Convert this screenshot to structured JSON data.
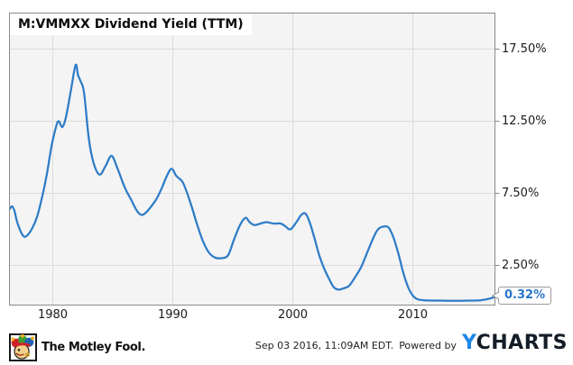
{
  "chart_data": {
    "type": "line",
    "title": "M:VMMXX Dividend Yield (TTM)",
    "series_name": "Dividend Yield (TTM)",
    "ticker": "M:VMMXX",
    "x": [
      1976.4,
      1976.6,
      1976.8,
      1977.0,
      1977.3,
      1977.6,
      1977.9,
      1978.3,
      1978.7,
      1979.1,
      1979.5,
      1979.9,
      1980.3,
      1980.5,
      1980.8,
      1981.1,
      1981.5,
      1981.9,
      1982.1,
      1982.3,
      1982.6,
      1983.0,
      1983.4,
      1983.9,
      1984.4,
      1984.9,
      1985.4,
      1986.0,
      1986.5,
      1987.0,
      1987.4,
      1987.8,
      1988.3,
      1988.7,
      1989.1,
      1989.5,
      1989.9,
      1990.3,
      1990.8,
      1991.2,
      1991.6,
      1992.0,
      1992.5,
      1993.0,
      1993.5,
      1994.0,
      1994.6,
      1995.1,
      1995.6,
      1996.05,
      1996.4,
      1996.8,
      1997.3,
      1997.8,
      1998.4,
      1999.0,
      1999.4,
      1999.8,
      2000.3,
      2000.7,
      2001.05,
      2001.4,
      2001.8,
      2002.2,
      2002.6,
      2003.0,
      2003.4,
      2003.8,
      2004.2,
      2004.7,
      2005.2,
      2005.7,
      2006.2,
      2006.7,
      2007.1,
      2007.6,
      2008.0,
      2008.4,
      2008.8,
      2009.2,
      2009.6,
      2010.0,
      2010.4,
      2011.0,
      2012.0,
      2013.0,
      2014.0,
      2015.0,
      2015.6,
      2016.0,
      2016.4,
      2016.84
    ],
    "y": [
      6.4,
      6.6,
      6.3,
      5.6,
      4.9,
      4.5,
      4.6,
      5.1,
      5.9,
      7.2,
      8.8,
      10.8,
      12.2,
      12.5,
      12.1,
      12.8,
      14.6,
      16.4,
      15.7,
      15.3,
      14.5,
      11.3,
      9.6,
      8.8,
      9.4,
      10.1,
      9.2,
      7.9,
      7.1,
      6.3,
      6.0,
      6.2,
      6.7,
      7.2,
      7.9,
      8.7,
      9.2,
      8.7,
      8.3,
      7.5,
      6.5,
      5.4,
      4.2,
      3.4,
      3.05,
      3.0,
      3.2,
      4.3,
      5.3,
      5.8,
      5.5,
      5.3,
      5.4,
      5.5,
      5.4,
      5.4,
      5.2,
      5.0,
      5.5,
      6.0,
      6.1,
      5.5,
      4.4,
      3.2,
      2.3,
      1.6,
      1.0,
      0.82,
      0.9,
      1.1,
      1.7,
      2.4,
      3.4,
      4.4,
      5.0,
      5.2,
      5.1,
      4.4,
      3.3,
      2.0,
      1.0,
      0.4,
      0.15,
      0.08,
      0.06,
      0.05,
      0.05,
      0.06,
      0.08,
      0.13,
      0.2,
      0.32
    ],
    "last_point_label": "0.32%",
    "last_point_value": 0.32,
    "x_ticks": [
      {
        "label": "1980",
        "year": 1980
      },
      {
        "label": "1990",
        "year": 1990
      },
      {
        "label": "2000",
        "year": 2000
      },
      {
        "label": "2010",
        "year": 2010
      }
    ],
    "y_ticks": [
      {
        "label": "17.50%",
        "value": 17.5
      },
      {
        "label": "12.50%",
        "value": 12.5
      },
      {
        "label": "7.50%",
        "value": 7.5
      },
      {
        "label": "2.50%",
        "value": 2.5
      }
    ],
    "xlim": [
      1976.39,
      2016.84
    ],
    "ylim": [
      -0.25,
      20.0
    ],
    "grid": true,
    "legend": "none"
  },
  "colors": {
    "line": "#2e7cc7",
    "badge_text": "#2a76c9",
    "plot_background": "#f4f4f4",
    "grid_line": "#dcdcdc",
    "chart_border": "#8a8a8a",
    "ycharts_blue": "#1e88e5",
    "ycharts_dark": "#141d27"
  },
  "footer": {
    "brand": "The Motley Fool.",
    "timestamp": "Sep 03 2016, 11:09AM EDT.",
    "powered_by": "Powered by",
    "ycharts_y": "Y",
    "ycharts_rest": "CHARTS"
  }
}
